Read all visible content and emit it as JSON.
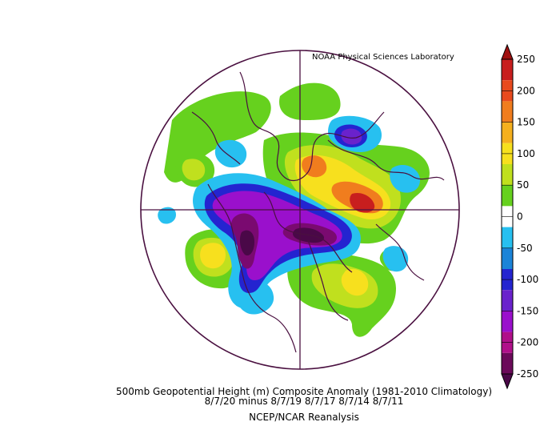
{
  "credit": "NOAA Physical Sciences Laboratory",
  "caption": {
    "line1": "500mb Geopotential Height (m) Composite Anomaly (1981-2010 Climatology)",
    "line2": "8/7/20 minus 8/7/19 8/7/17 8/7/14 8/7/11",
    "line3": "NCEP/NCAR Reanalysis"
  },
  "colorbar": {
    "labels": [
      "250",
      "200",
      "150",
      "100",
      "50",
      "0",
      "-50",
      "-100",
      "-150",
      "-200",
      "-250"
    ],
    "colors": [
      "#c81e1e",
      "#e84a1e",
      "#f07d1e",
      "#f5b01e",
      "#f7e01e",
      "#c0e01e",
      "#66d11e",
      "#ffffff",
      "#27c0f0",
      "#1b84d8",
      "#2424d0",
      "#6a22cc",
      "#9a10cc",
      "#b0108a",
      "#6b0a5a"
    ]
  },
  "anomaly_fields": [
    {
      "kind": "negative",
      "level": "-250",
      "color": "#4a0848"
    },
    {
      "kind": "negative",
      "level": "-200",
      "color": "#7a0a70"
    },
    {
      "kind": "negative",
      "level": "-150",
      "color": "#9a10cc"
    },
    {
      "kind": "negative",
      "level": "-100",
      "color": "#5a1cd0"
    },
    {
      "kind": "negative",
      "level": "-50",
      "color": "#27c0f0"
    },
    {
      "kind": "positive",
      "level": "50",
      "color": "#66d11e"
    },
    {
      "kind": "positive",
      "level": "100",
      "color": "#c0e01e"
    },
    {
      "kind": "positive",
      "level": "150",
      "color": "#f7e01e"
    },
    {
      "kind": "positive",
      "level": "200",
      "color": "#f07d1e"
    },
    {
      "kind": "positive",
      "level": "250",
      "color": "#c81e1e"
    }
  ],
  "line_color": "#4a1040"
}
